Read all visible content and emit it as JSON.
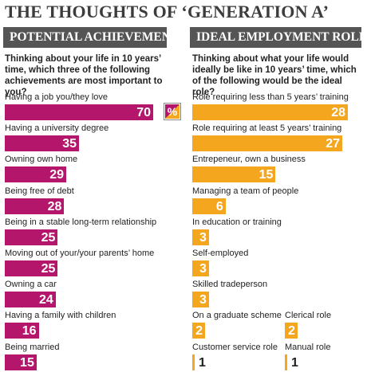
{
  "title": "THE THOUGHTS OF ‘GENERATION A’",
  "badge": "%",
  "colors": {
    "left_bar": "#b3166b",
    "right_bar": "#f3a61e",
    "header_bg": "#555555"
  },
  "chart_data": [
    {
      "type": "bar",
      "title": "POTENTIAL ACHIEVEMENTS",
      "subtitle": "Thinking about your life in 10 years’ time, which three of the following achievements are most important to you?",
      "xlim": [
        0,
        70
      ],
      "categories": [
        "Having a job you/they love",
        "Having a university degree",
        "Owning own home",
        "Being free of debt",
        "Being in a stable long-term relationship",
        "Moving out of your/your parents’ home",
        "Owning a car",
        "Having a family with children",
        "Being married"
      ],
      "values": [
        70,
        35,
        29,
        28,
        25,
        25,
        24,
        16,
        15
      ]
    },
    {
      "type": "bar",
      "title": "IDEAL EMPLOYMENT ROLE",
      "subtitle": "Thinking about what your life would ideally be like in 10 years’ time, which of the following would be the ideal role?",
      "xlim": [
        0,
        28
      ],
      "categories": [
        "Role requiring less than 5 years’ training",
        "Role requiring at least 5 years’ training",
        "Entrepeneur, own a business",
        "Managing a team of people",
        "In education or training",
        "Self-employed",
        "Skilled tradeperson",
        "On a graduate scheme",
        "Clerical role",
        "Customer service role",
        "Manual role"
      ],
      "values": [
        28,
        27,
        15,
        6,
        3,
        3,
        3,
        2,
        2,
        1,
        1
      ]
    }
  ]
}
